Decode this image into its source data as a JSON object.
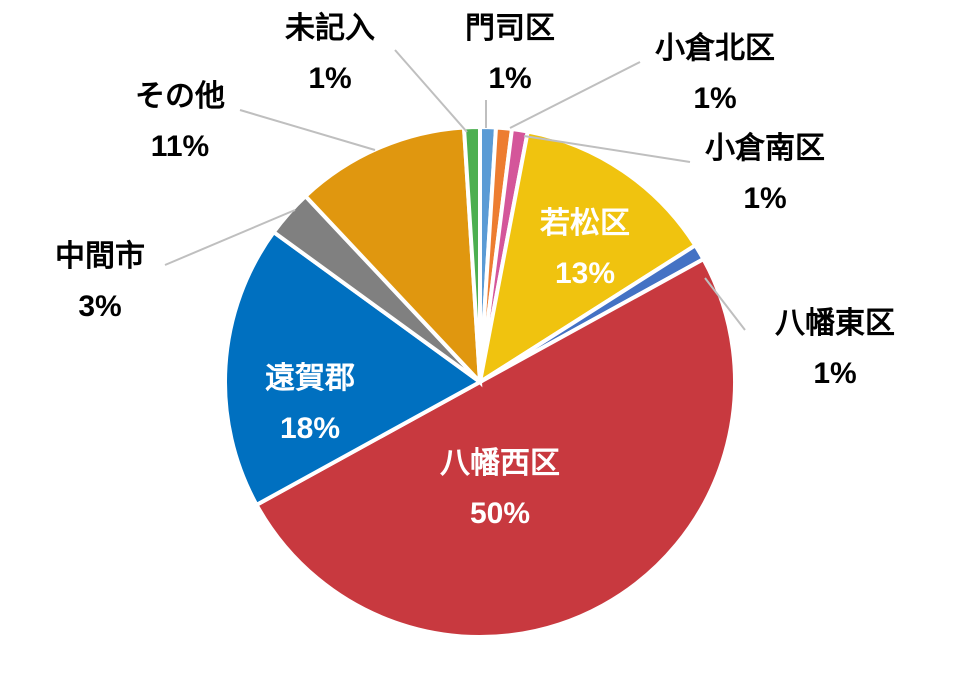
{
  "chart_data": {
    "type": "pie",
    "categories": [
      "門司区",
      "小倉北区",
      "小倉南区",
      "若松区",
      "八幡東区",
      "八幡西区",
      "遠賀郡",
      "中間市",
      "その他",
      "未記入"
    ],
    "values": [
      1,
      1,
      1,
      13,
      1,
      50,
      18,
      3,
      11,
      1
    ],
    "value_labels": [
      "1%",
      "1%",
      "1%",
      "13%",
      "1%",
      "50%",
      "18%",
      "3%",
      "11%",
      "1%"
    ],
    "colors": [
      "#5b9bd5",
      "#ed7d31",
      "#d4569a",
      "#f0c30f",
      "#4472c4",
      "#c8393f",
      "#0070c0",
      "#808080",
      "#e0970f",
      "#4caf50"
    ]
  }
}
